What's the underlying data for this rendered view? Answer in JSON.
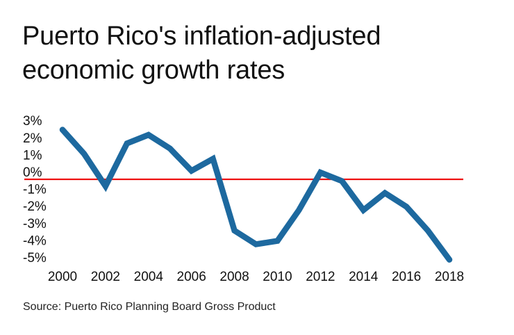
{
  "chart_data": {
    "type": "line",
    "title_lines": [
      "Puerto Rico's inflation-adjusted",
      "economic growth rates"
    ],
    "source": "Source: Puerto Rico Planning Board Gross Product",
    "xlabel": "",
    "ylabel": "",
    "x": [
      2000,
      2001,
      2002,
      2003,
      2004,
      2005,
      2006,
      2007,
      2008,
      2009,
      2010,
      2011,
      2012,
      2013,
      2014,
      2015,
      2016,
      2017,
      2018
    ],
    "series": [
      {
        "values": [
          2.9,
          1.5,
          -0.4,
          2.1,
          2.6,
          1.8,
          0.5,
          1.2,
          -3.0,
          -3.8,
          -3.6,
          -1.8,
          0.4,
          -0.1,
          -1.8,
          -0.8,
          -1.6,
          -3.0,
          -4.7
        ],
        "color": "#1d699f"
      }
    ],
    "xlim": [
      2000,
      2018
    ],
    "ylim": [
      -5,
      3
    ],
    "x_ticks": [
      "2000",
      "2002",
      "2004",
      "2006",
      "2008",
      "2010",
      "2012",
      "2014",
      "2016",
      "2018"
    ],
    "y_ticks": [
      {
        "value": 3,
        "label": "3%"
      },
      {
        "value": 2,
        "label": "2%"
      },
      {
        "value": 1,
        "label": "1%"
      },
      {
        "value": 0,
        "label": "0%"
      },
      {
        "value": -1,
        "label": "-1%"
      },
      {
        "value": -2,
        "label": "-2%"
      },
      {
        "value": -3,
        "label": "-3%"
      },
      {
        "value": -4,
        "label": "-4%"
      },
      {
        "value": -5,
        "label": "-5%"
      }
    ],
    "reference_line": {
      "value": 0,
      "color": "#ee1111"
    },
    "grid": false,
    "legend": "none"
  }
}
